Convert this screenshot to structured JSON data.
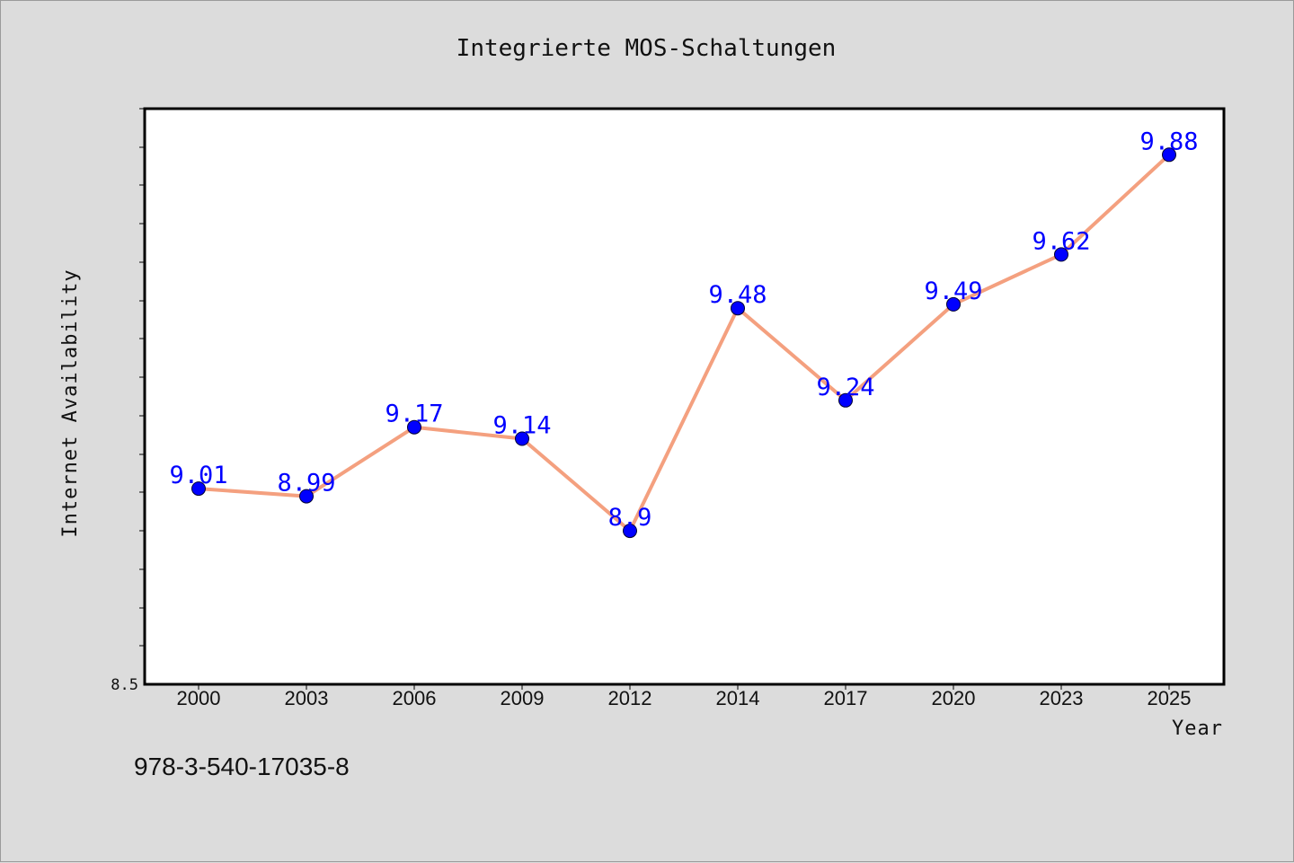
{
  "chart_data": {
    "type": "line",
    "title": "Integrierte MOS-Schaltungen",
    "xlabel": "Year",
    "ylabel": "Internet Availability",
    "categories": [
      "2000",
      "2003",
      "2006",
      "2009",
      "2012",
      "2014",
      "2017",
      "2020",
      "2023",
      "2025"
    ],
    "series": [
      {
        "values": [
          9.01,
          8.99,
          9.17,
          9.14,
          8.9,
          9.48,
          9.24,
          9.49,
          9.62,
          9.88
        ],
        "labels": [
          "9.01",
          "8.99",
          "9.17",
          "9.14",
          "8.9",
          "9.48",
          "9.24",
          "9.49",
          "9.62",
          "9.88"
        ],
        "line_color": "#f4a07f",
        "marker_color": "#0000ff"
      }
    ],
    "ylim": [
      8.5,
      10.0
    ],
    "ytick_labels": [
      {
        "value": 8.5,
        "label": "8.5"
      }
    ],
    "grid": false,
    "legend": "none"
  },
  "footer": {
    "isbn": "978-3-540-17035-8"
  }
}
